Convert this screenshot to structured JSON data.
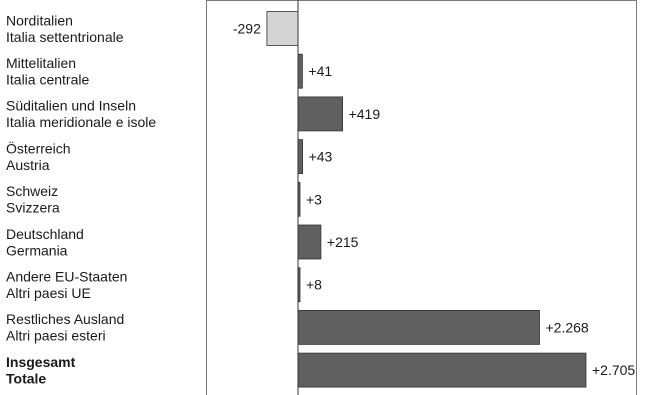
{
  "chart_data": {
    "type": "bar",
    "orientation": "horizontal",
    "categories": [
      [
        "Norditalien",
        "Italia settentrionale"
      ],
      [
        "Mittelitalien",
        "Italia centrale"
      ],
      [
        "Süditalien und Inseln",
        "Italia meridionale e isole"
      ],
      [
        "Österreich",
        "Austria"
      ],
      [
        "Schweiz",
        "Svizzera"
      ],
      [
        "Deutschland",
        "Germania"
      ],
      [
        "Andere EU-Staaten",
        "Altri paesi UE"
      ],
      [
        "Restliches Ausland",
        "Altri paesi esteri"
      ],
      [
        "Insgesamt",
        "Totale"
      ]
    ],
    "values": [
      -292,
      41,
      419,
      43,
      3,
      215,
      8,
      2268,
      2705
    ],
    "value_labels": [
      "-292",
      "+41",
      "+419",
      "+43",
      "+3",
      "+215",
      "+8",
      "+2.268",
      "+2.705"
    ],
    "bold_categories": [
      8
    ],
    "xlim": [
      -1550,
      5100
    ],
    "colors": {
      "positive": "#606060",
      "negative": "#d4d4d4",
      "frame": "#7a7a7a"
    },
    "title": "",
    "xlabel": "",
    "ylabel": "",
    "grid": false,
    "legend": false
  }
}
